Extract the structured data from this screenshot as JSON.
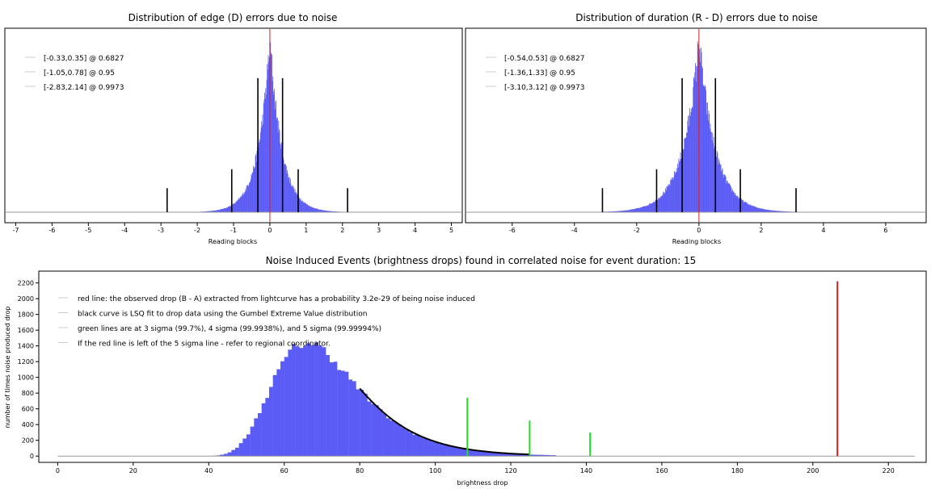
{
  "chart_data": [
    {
      "type": "bar",
      "title": "Distribution of edge (D) errors due to noise",
      "xlabel": "Reading blocks",
      "ylabel": "",
      "xlim": [
        -7.3,
        5.3
      ],
      "x_ticks": [
        "-7",
        "-6",
        "-5",
        "-4",
        "-3",
        "-2",
        "-1",
        "0",
        "1",
        "2",
        "3",
        "4",
        "5"
      ],
      "grid": false,
      "legend_position": "top-left",
      "legend": [
        "[-0.33,0.35] @ 0.6827",
        "[-1.05,0.78] @ 0.95",
        "[-2.83,2.14] @ 0.9973"
      ],
      "histogram": {
        "center": 0.0,
        "peak": 1.0,
        "scale": 0.33,
        "xmin": -2.9,
        "xmax": 2.2,
        "color": "#5b5bf5"
      },
      "mean_line": {
        "x": 0.0,
        "color": "#d62020"
      },
      "interval_lines": [
        {
          "x": -0.33,
          "height": 0.78
        },
        {
          "x": 0.35,
          "height": 0.78
        },
        {
          "x": -1.05,
          "height": 0.25
        },
        {
          "x": 0.78,
          "height": 0.25
        },
        {
          "x": -2.83,
          "height": 0.14
        },
        {
          "x": 2.14,
          "height": 0.14
        }
      ]
    },
    {
      "type": "bar",
      "title": "Distribution of duration (R - D) errors due to noise",
      "xlabel": "Reading blocks",
      "ylabel": "",
      "xlim": [
        -7.5,
        7.3
      ],
      "x_ticks": [
        "-6",
        "-4",
        "-2",
        "0",
        "2",
        "4",
        "6"
      ],
      "grid": false,
      "legend_position": "top-left",
      "legend": [
        "[-0.54,0.53] @ 0.6827",
        "[-1.36,1.33] @ 0.95",
        "[-3.10,3.12] @ 0.9973"
      ],
      "histogram": {
        "center": 0.0,
        "peak": 1.0,
        "scale": 0.52,
        "xmin": -3.2,
        "xmax": 3.2,
        "color": "#5b5bf5"
      },
      "mean_line": {
        "x": 0.0,
        "color": "#d62020"
      },
      "interval_lines": [
        {
          "x": -0.54,
          "height": 0.78
        },
        {
          "x": 0.53,
          "height": 0.78
        },
        {
          "x": -1.36,
          "height": 0.25
        },
        {
          "x": 1.33,
          "height": 0.25
        },
        {
          "x": -3.1,
          "height": 0.14
        },
        {
          "x": 3.12,
          "height": 0.14
        }
      ]
    },
    {
      "type": "bar",
      "title": "Noise Induced Events (brightness drops) found in correlated noise for event duration: 15",
      "xlabel": "brightness drop",
      "ylabel": "number of times noise produced drop",
      "xlim": [
        -5,
        230
      ],
      "ylim": [
        -80,
        2350
      ],
      "x_ticks": [
        "0",
        "20",
        "40",
        "60",
        "80",
        "100",
        "120",
        "140",
        "160",
        "180",
        "200",
        "220"
      ],
      "y_ticks": [
        "0",
        "200",
        "400",
        "600",
        "800",
        "1000",
        "1200",
        "1400",
        "1600",
        "1800",
        "2000",
        "2200"
      ],
      "grid": false,
      "legend_position": "top-left",
      "legend": [
        "red line: the observed drop (B - A) extracted from lightcurve has a probability 3.2e-29 of being noise induced",
        "black curve is LSQ fit to drop data using the Gumbel Extreme Value distribution",
        "green lines are at 3 sigma (99.7%), 4 sigma (99.9938%), and 5 sigma (99.99994%)",
        "If the red line is left of the 5 sigma line - refer to regional coordinator."
      ],
      "histogram": {
        "mu": 66,
        "beta": 11.2,
        "peak": 1440,
        "xmin": 33,
        "xmax": 132,
        "color": "#5b5bf5"
      },
      "baseline": {
        "x": [
          0,
          227
        ],
        "color": "#999999"
      },
      "fit_curve": {
        "x_start": 80,
        "x_end": 125,
        "color": "#000000"
      },
      "sigma_lines": [
        {
          "x": 108.5,
          "y": 740
        },
        {
          "x": 125,
          "y": 450
        },
        {
          "x": 141,
          "y": 300
        }
      ],
      "sigma_color": "#22dd22",
      "observed_line": {
        "x": 206.5,
        "y": 2220,
        "color": "#d62020"
      }
    }
  ]
}
